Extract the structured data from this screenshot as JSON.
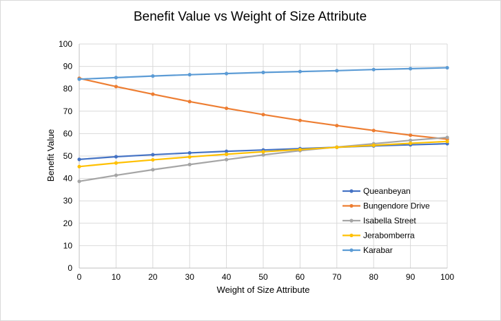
{
  "chart_data": {
    "type": "line",
    "title": "Benefit Value vs Weight of Size Attribute",
    "xlabel": "Weight of Size Attribute",
    "ylabel": "Benefit Value",
    "x": [
      0,
      10,
      20,
      30,
      40,
      50,
      60,
      70,
      80,
      90,
      100
    ],
    "xlim": [
      0,
      100
    ],
    "ylim": [
      0,
      100
    ],
    "xticks": [
      "0",
      "10",
      "20",
      "30",
      "40",
      "50",
      "60",
      "70",
      "80",
      "90",
      "100"
    ],
    "yticks": [
      "0",
      "10",
      "20",
      "30",
      "40",
      "50",
      "60",
      "70",
      "80",
      "90",
      "100"
    ],
    "grid": true,
    "legend_position": "right",
    "series": [
      {
        "name": "Queanbeyan",
        "color": "#4472c4",
        "values": [
          48.5,
          49.7,
          50.6,
          51.4,
          52.1,
          52.7,
          53.3,
          53.9,
          54.5,
          55.0,
          55.5
        ]
      },
      {
        "name": "Bungendore Drive",
        "color": "#ed7d31",
        "values": [
          84.7,
          81.0,
          77.6,
          74.3,
          71.3,
          68.5,
          65.9,
          63.6,
          61.4,
          59.3,
          57.5
        ]
      },
      {
        "name": "Isabella Street",
        "color": "#a5a5a5",
        "values": [
          38.7,
          41.4,
          43.9,
          46.2,
          48.4,
          50.5,
          52.4,
          54.0,
          55.5,
          57.0,
          58.3
        ]
      },
      {
        "name": "Jerabomberra",
        "color": "#ffc000",
        "values": [
          45.3,
          46.9,
          48.3,
          49.6,
          50.8,
          51.9,
          52.9,
          53.9,
          54.8,
          55.7,
          56.5
        ]
      },
      {
        "name": "Karabar",
        "color": "#5b9bd5",
        "values": [
          84.3,
          85.0,
          85.7,
          86.3,
          86.8,
          87.3,
          87.7,
          88.1,
          88.6,
          89.0,
          89.4
        ]
      }
    ]
  }
}
